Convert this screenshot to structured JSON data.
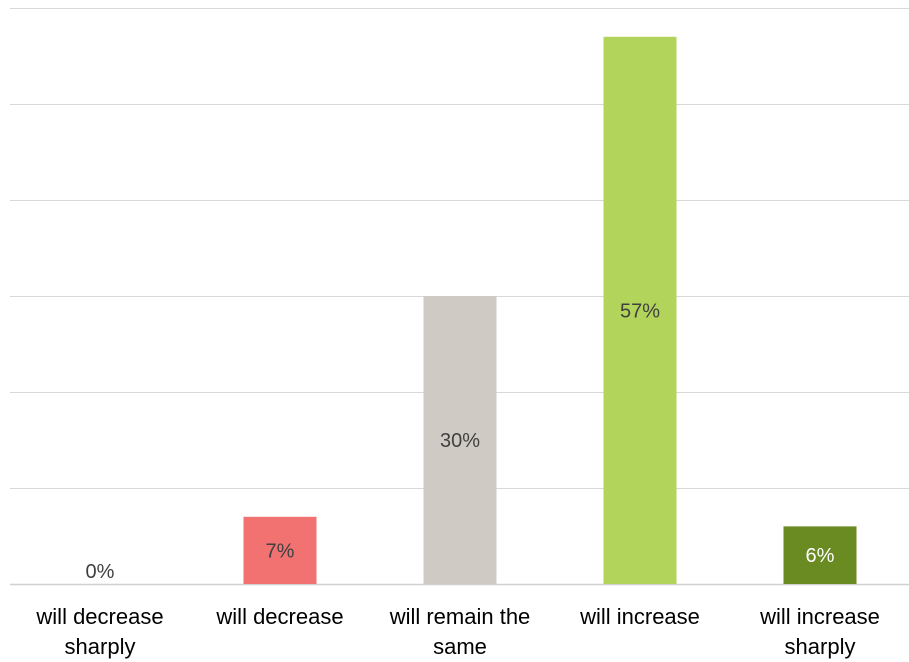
{
  "chart_data": {
    "type": "bar",
    "categories": [
      [
        "will decrease",
        "sharply"
      ],
      [
        "will decrease"
      ],
      [
        "will remain the",
        "same"
      ],
      [
        "will increase"
      ],
      [
        "will increase",
        "sharply"
      ]
    ],
    "values": [
      0,
      7,
      30,
      57,
      6
    ],
    "data_labels": [
      "0%",
      "7%",
      "30%",
      "57%",
      "6%"
    ],
    "colors": [
      "#a6a6a6",
      "#f27171",
      "#cfcbc4",
      "#b3d45a",
      "#6a8a22"
    ],
    "label_colors": [
      "#404040",
      "#404040",
      "#404040",
      "#404040",
      "#ffffff"
    ],
    "ylim": [
      0,
      60
    ],
    "y_gridline_step": 10,
    "grid": true,
    "legend": "none",
    "title": "",
    "xlabel": "",
    "ylabel": ""
  }
}
